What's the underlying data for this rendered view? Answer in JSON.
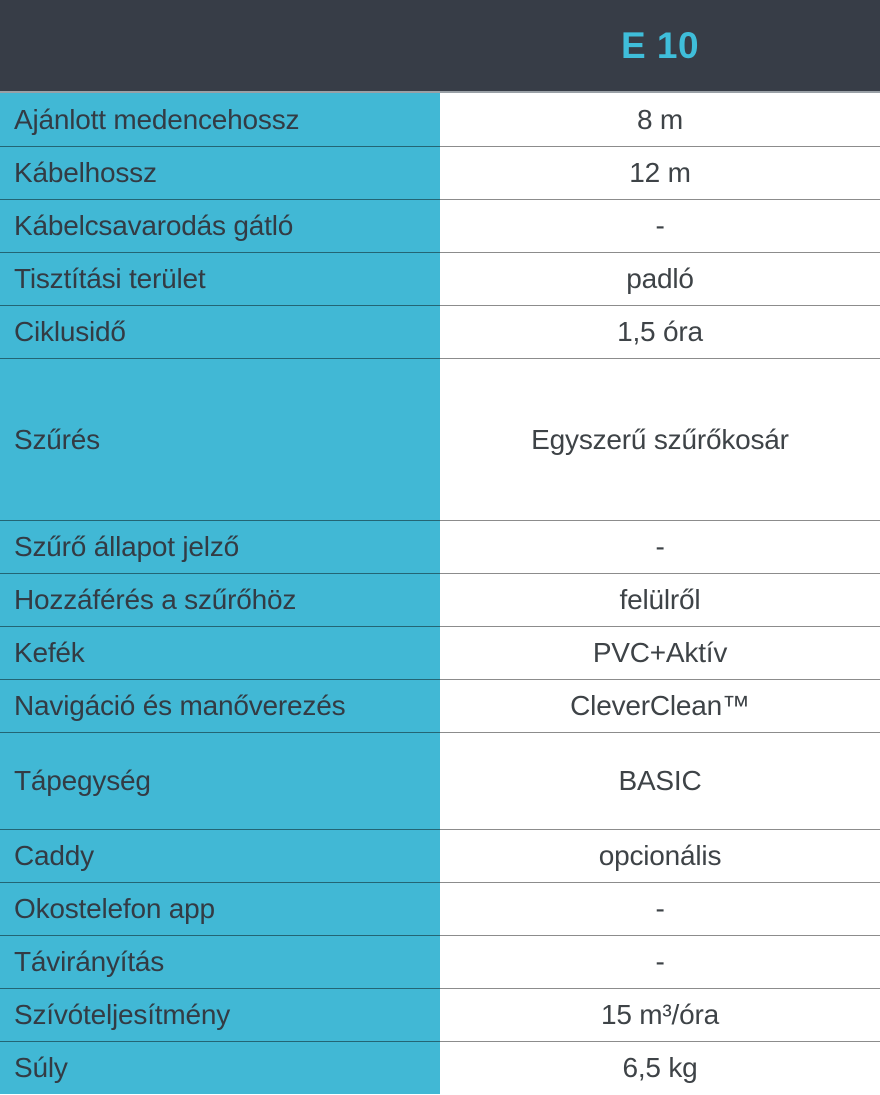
{
  "header": {
    "product_name": "E 10"
  },
  "table": {
    "rows": [
      {
        "label": "Ajánlott medencehossz",
        "value": "8 m",
        "size": "normal"
      },
      {
        "label": "Kábelhossz",
        "value": "12 m",
        "size": "normal"
      },
      {
        "label": "Kábelcsavarodás gátló",
        "value": "-",
        "size": "normal"
      },
      {
        "label": "Tisztítási terület",
        "value": "padló",
        "size": "normal"
      },
      {
        "label": "Ciklusidő",
        "value": "1,5 óra",
        "size": "normal"
      },
      {
        "label": "Szűrés",
        "value": "Egyszerű szűrőkosár",
        "size": "tall"
      },
      {
        "label": "Szűrő állapot jelző",
        "value": "-",
        "size": "normal"
      },
      {
        "label": "Hozzáférés a szűrőhöz",
        "value": "felülről",
        "size": "normal"
      },
      {
        "label": "Kefék",
        "value": "PVC+Aktív",
        "size": "normal"
      },
      {
        "label": "Navigáció és manőverezés",
        "value": "CleverClean™",
        "size": "normal"
      },
      {
        "label": "Tápegység",
        "value": "BASIC",
        "size": "medium"
      },
      {
        "label": "Caddy",
        "value": "opcionális",
        "size": "normal"
      },
      {
        "label": "Okostelefon app",
        "value": "-",
        "size": "normal"
      },
      {
        "label": "Távirányítás",
        "value": "-",
        "size": "normal"
      },
      {
        "label": "Szívóteljesítmény",
        "value": "15 m³/óra",
        "size": "normal"
      },
      {
        "label": "Súly",
        "value": "6,5 kg",
        "size": "normal"
      }
    ]
  },
  "colors": {
    "header_bg": "#373D47",
    "title_cyan": "#3FBEDA",
    "label_bg": "#41B8D5",
    "label_text": "#333B44",
    "value_text": "#3E4347",
    "divider": "rgba(0,0,0,0.45)",
    "header_divider": "#99A0A6"
  }
}
